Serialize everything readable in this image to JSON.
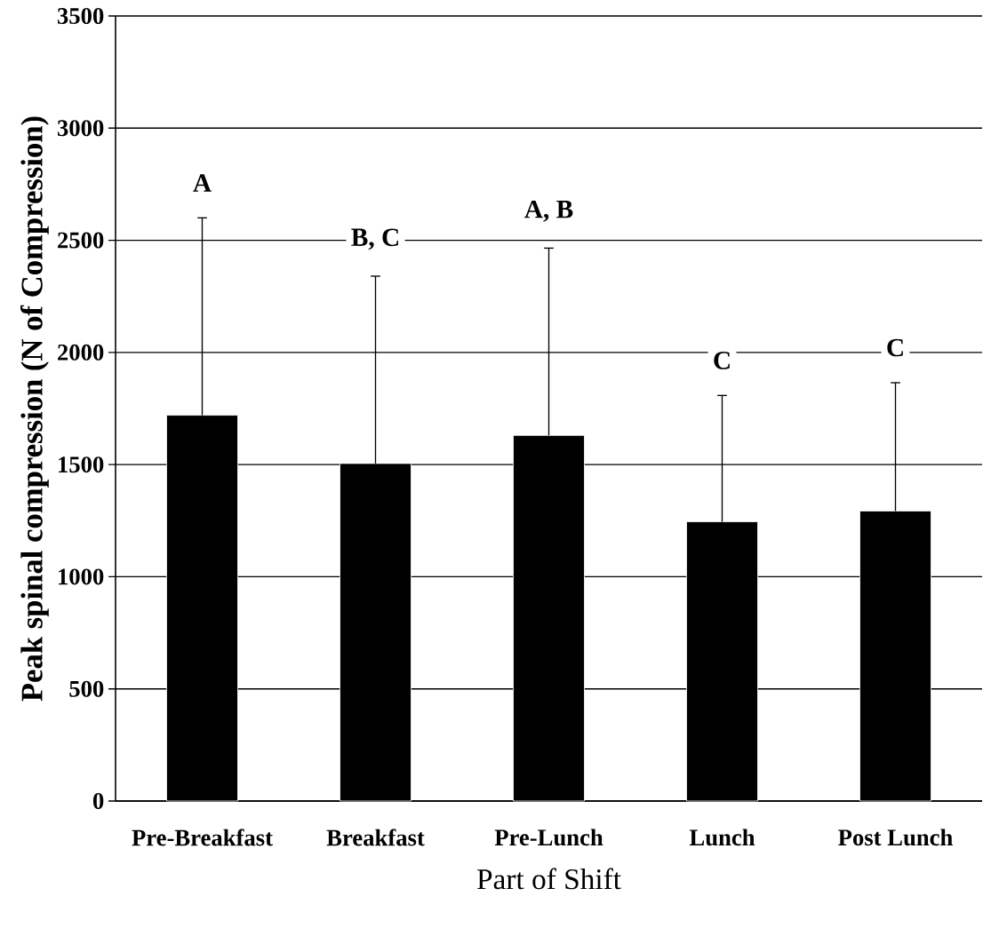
{
  "chart_data": {
    "type": "bar",
    "xlabel": "Part of Shift",
    "ylabel": "Peak spinal compression (N of Compression)",
    "categories": [
      "Pre-Breakfast",
      "Breakfast",
      "Pre-Lunch",
      "Lunch",
      "Post Lunch"
    ],
    "values": [
      1720,
      1505,
      1630,
      1245,
      1293
    ],
    "errors": [
      [
        1720,
        2600
      ],
      [
        1505,
        2340
      ],
      [
        1630,
        2465
      ],
      [
        1245,
        1808
      ],
      [
        1293,
        1865
      ]
    ],
    "color": "#000000",
    "ylim": [
      0,
      3500
    ],
    "yticks": [
      0,
      500,
      1000,
      1500,
      2000,
      2500,
      3000,
      3500
    ],
    "grid": "y",
    "annotations": [
      "A",
      "B, C",
      "A, B",
      "C",
      "C"
    ]
  }
}
